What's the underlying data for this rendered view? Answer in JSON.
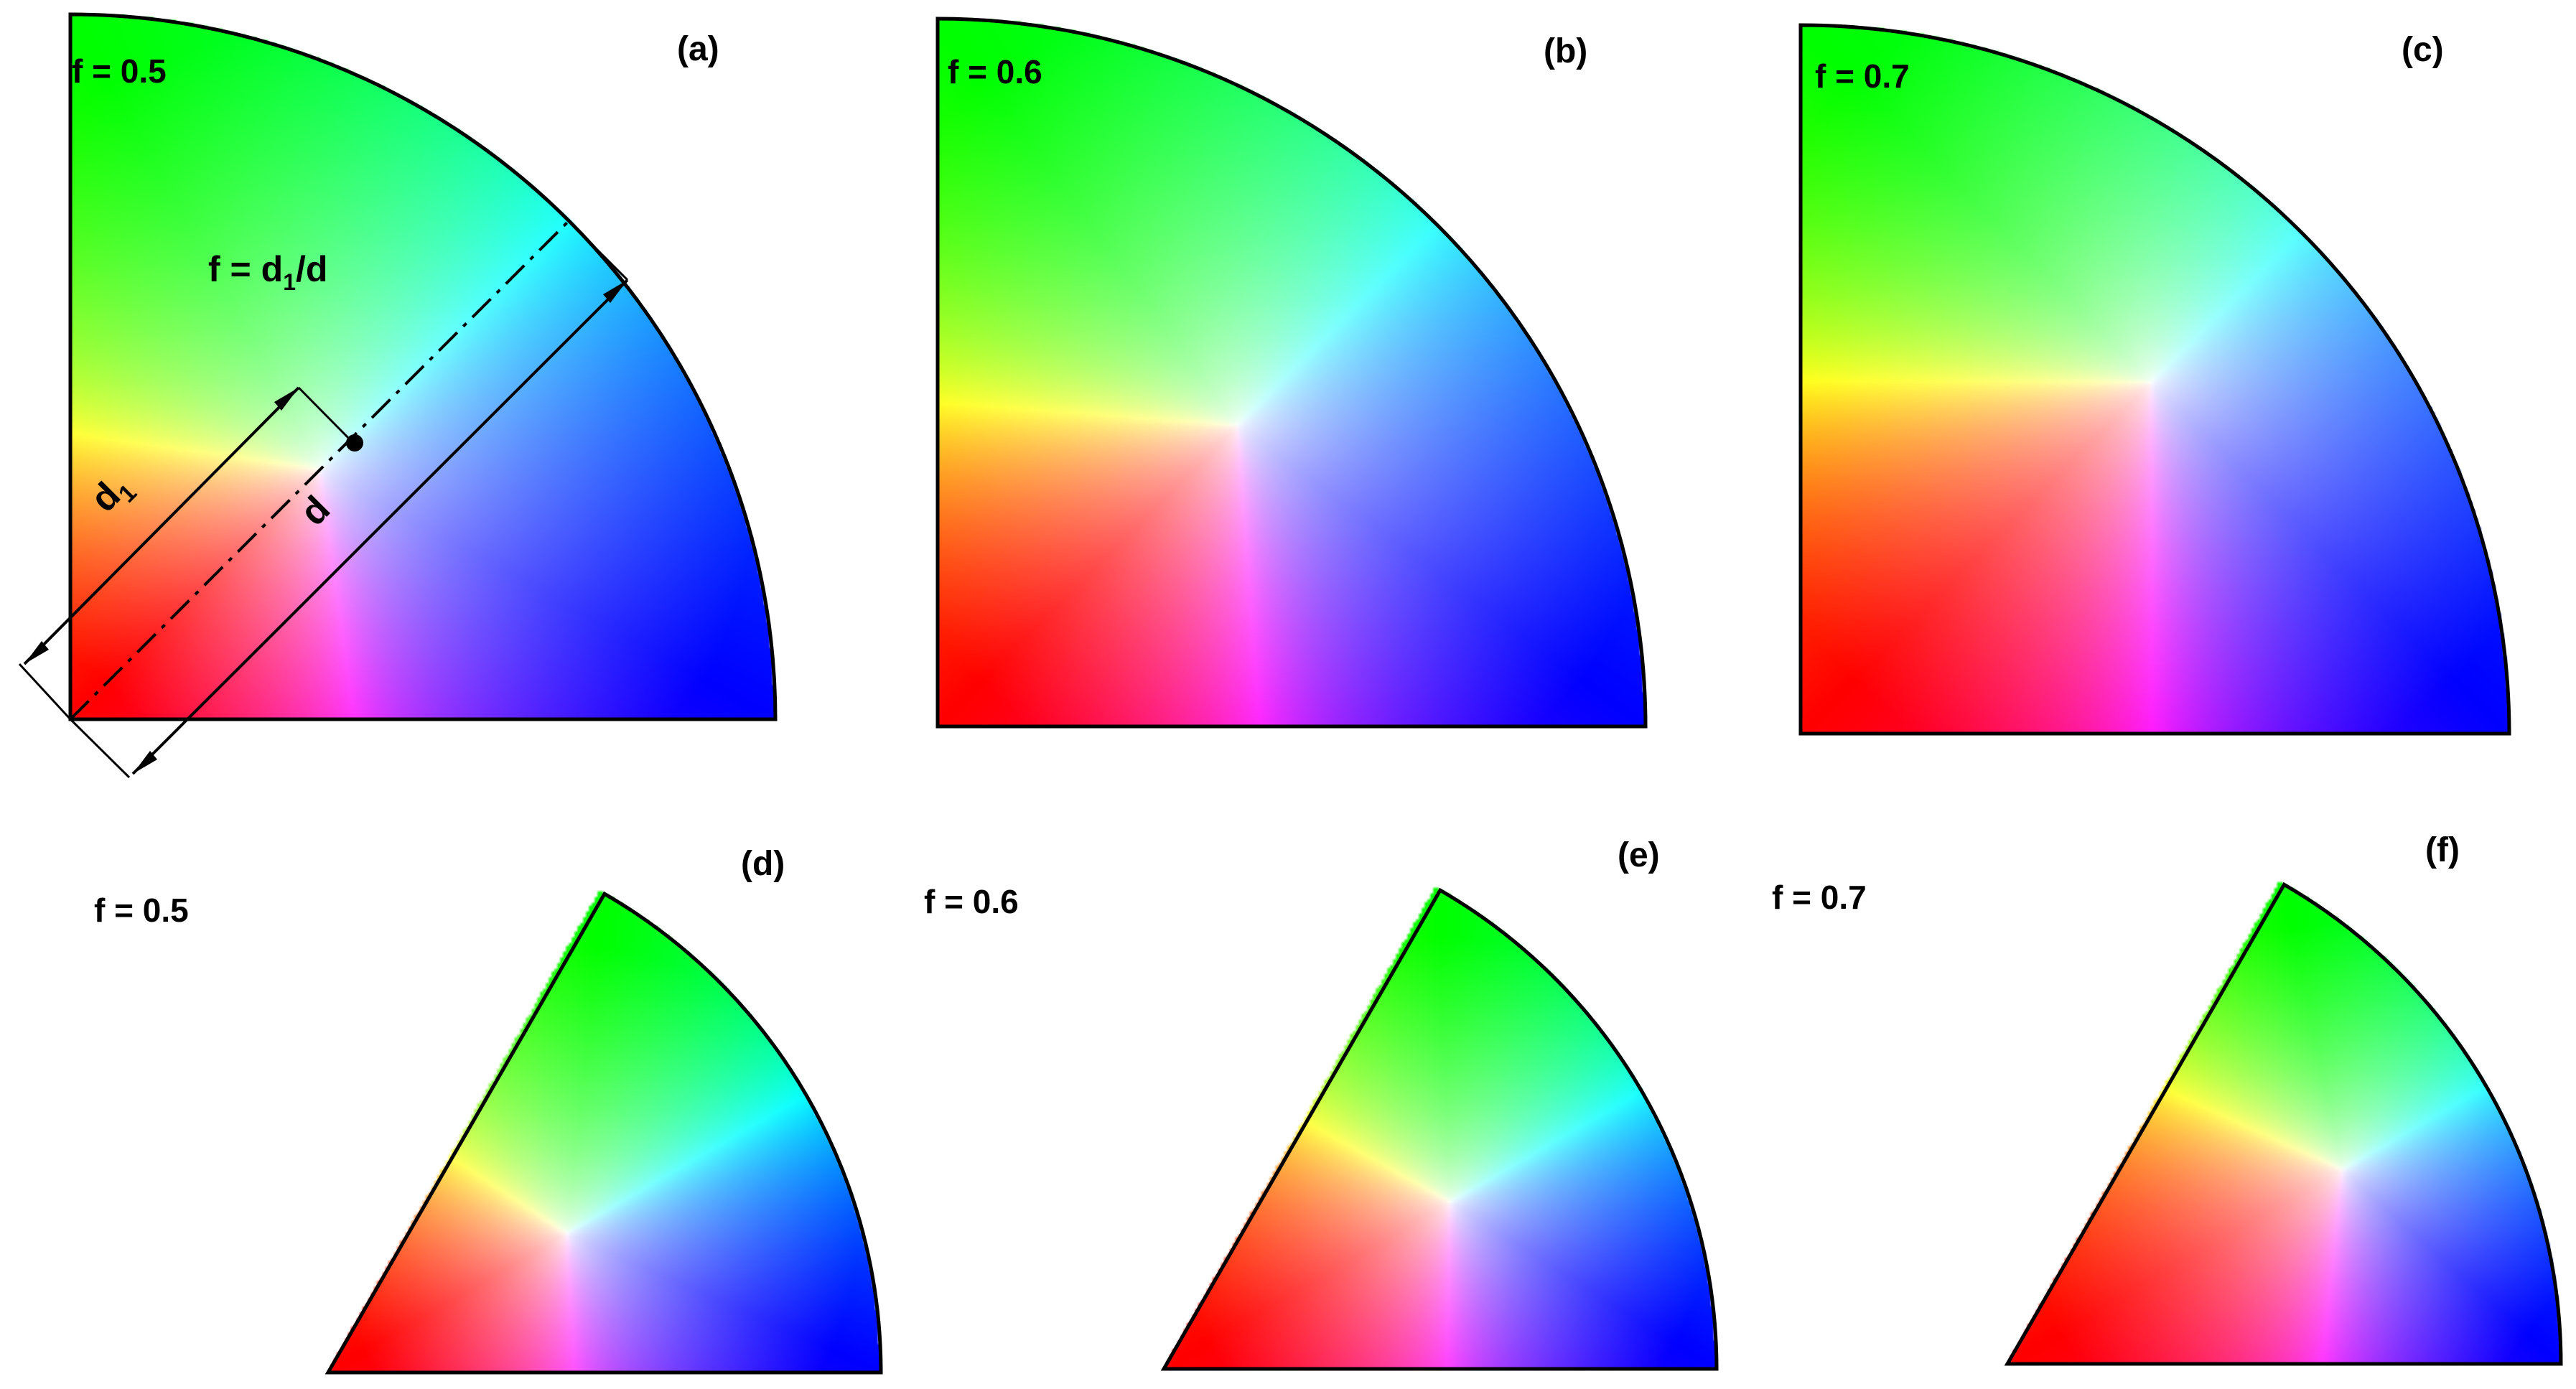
{
  "panels": [
    {
      "id": "a",
      "letter": "(a)",
      "f_label": "f = 0.5",
      "f": 0.5,
      "sector_angle_deg": 90
    },
    {
      "id": "b",
      "letter": "(b)",
      "f_label": "f = 0.6",
      "f": 0.6,
      "sector_angle_deg": 90
    },
    {
      "id": "c",
      "letter": "(c)",
      "f_label": "f = 0.7",
      "f": 0.7,
      "sector_angle_deg": 90
    },
    {
      "id": "d",
      "letter": "(d)",
      "f_label": "f = 0.5",
      "f": 0.5,
      "sector_angle_deg": 60
    },
    {
      "id": "e",
      "letter": "(e)",
      "f_label": "f = 0.6",
      "f": 0.6,
      "sector_angle_deg": 60
    },
    {
      "id": "f",
      "letter": "(f)",
      "f_label": "f = 0.7",
      "f": 0.7,
      "sector_angle_deg": 60
    }
  ],
  "annotation": {
    "formula_prefix": "f = d",
    "formula_sub": "1",
    "formula_suffix": "/d",
    "d1_main": "d",
    "d1_sub": "1",
    "d_label": "d"
  },
  "colors": {
    "corner_origin": "#ff0000",
    "corner_top": "#00ff00",
    "corner_right": "#0000ff",
    "center": "#ffffff"
  }
}
